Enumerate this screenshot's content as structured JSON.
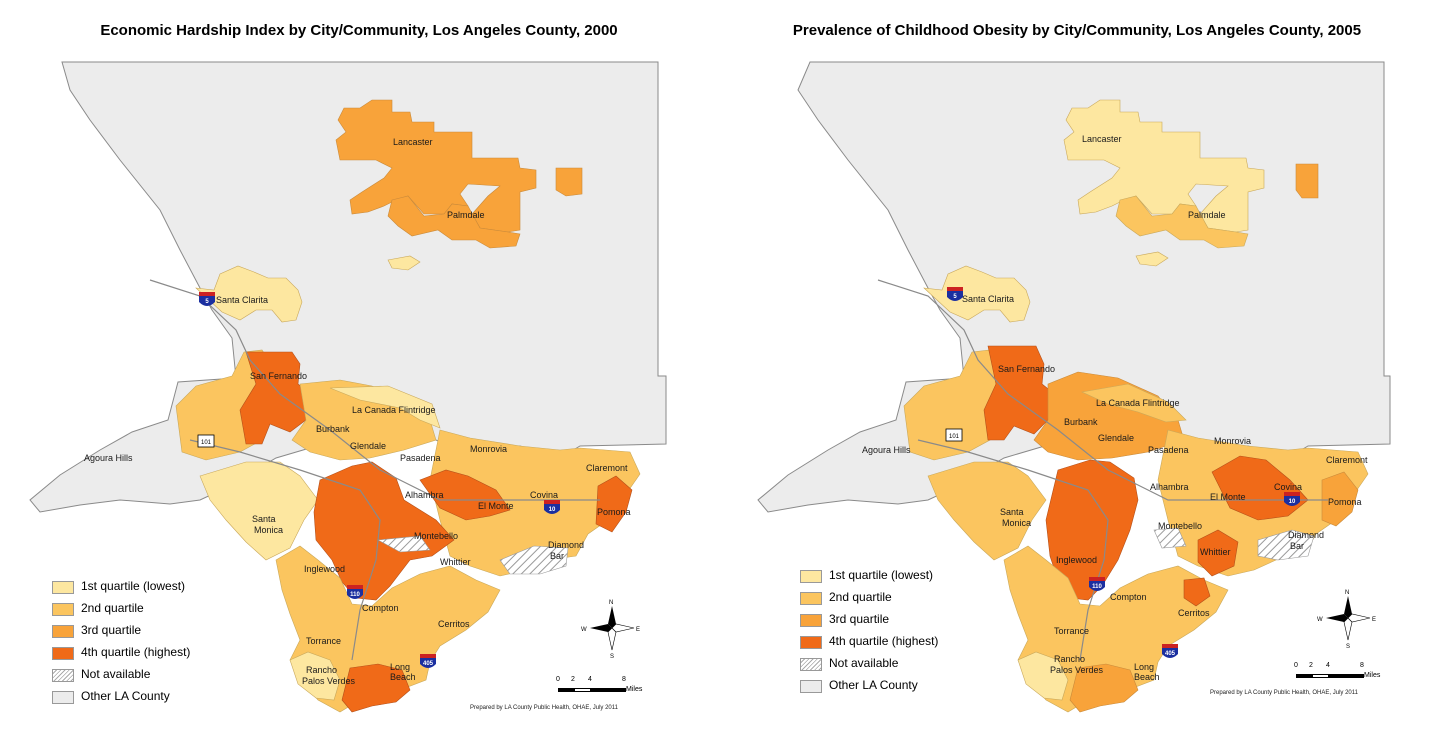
{
  "colors": {
    "q1": "#fde7a0",
    "q2": "#fbc55f",
    "q3": "#f8a33a",
    "q4": "#f06a18",
    "na": "#e6e6e6",
    "other": "#ececec",
    "border": "#9a9a9a",
    "road": "#8a8a8a"
  },
  "maps": [
    {
      "title": "Economic Hardship Index by City/Community, Los Angeles County, 2000",
      "legend": [
        {
          "label": "1st quartile (lowest)",
          "color": "q1"
        },
        {
          "label": "2nd quartile",
          "color": "q2"
        },
        {
          "label": "3rd quartile",
          "color": "q3"
        },
        {
          "label": "4th quartile (highest)",
          "color": "q4"
        },
        {
          "label": "Not available",
          "color": "na"
        },
        {
          "label": "Other LA County",
          "color": "other"
        }
      ],
      "cities": [
        "Lancaster",
        "Palmdale",
        "Santa Clarita",
        "San Fernando",
        "La Canada Flintridge",
        "Burbank",
        "Glendale",
        "Agoura Hills",
        "Pasadena",
        "Monrovia",
        "Claremont",
        "Alhambra",
        "El Monte",
        "Covina",
        "Pomona",
        "Santa Monica",
        "Montebello",
        "Diamond Bar",
        "Whittier",
        "Inglewood",
        "Compton",
        "Cerritos",
        "Torrance",
        "Rancho Palos Verdes",
        "Long Beach"
      ],
      "highway_shields": [
        "5",
        "101",
        "110",
        "10",
        "405"
      ],
      "scale": {
        "ticks": [
          "0",
          "2",
          "4",
          "8"
        ],
        "unit": "Miles"
      },
      "compass": [
        "N",
        "S",
        "E",
        "W"
      ],
      "prepared_by": "Prepared by LA County Public Health, OHAE, July 2011"
    },
    {
      "title": "Prevalence of Childhood Obesity by City/Community, Los Angeles County, 2005",
      "legend": [
        {
          "label": "1st quartile (lowest)",
          "color": "q1"
        },
        {
          "label": "2nd quartile",
          "color": "q2"
        },
        {
          "label": "3rd quartile",
          "color": "q3"
        },
        {
          "label": "4th quartile (highest)",
          "color": "q4"
        },
        {
          "label": "Not available",
          "color": "na"
        },
        {
          "label": "Other LA County",
          "color": "other"
        }
      ],
      "cities": [
        "Lancaster",
        "Palmdale",
        "Santa Clarita",
        "San Fernando",
        "La Canada Flintridge",
        "Burbank",
        "Glendale",
        "Agoura Hills",
        "Pasadena",
        "Monrovia",
        "Claremont",
        "Alhambra",
        "El Monte",
        "Covina",
        "Pomona",
        "Santa Monica",
        "Montebello",
        "Diamond Bar",
        "Whittier",
        "Inglewood",
        "Compton",
        "Cerritos",
        "Torrance",
        "Rancho Palos Verdes",
        "Long Beach"
      ],
      "highway_shields": [
        "5",
        "101",
        "110",
        "10",
        "405"
      ],
      "scale": {
        "ticks": [
          "0",
          "2",
          "4",
          "8"
        ],
        "unit": "Miles"
      },
      "compass": [
        "N",
        "S",
        "E",
        "W"
      ],
      "prepared_by": "Prepared by LA County Public Health, OHAE, July 2011"
    }
  ]
}
